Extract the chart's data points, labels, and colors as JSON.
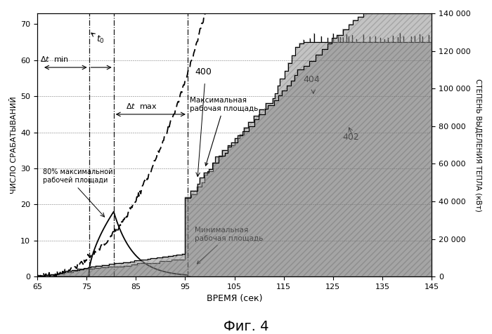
{
  "title": "Фиг. 4",
  "xlabel": "ВРЕМЯ (сек)",
  "ylabel_left": "ЧИСЛО СРАБАТЫВАНИЙ",
  "ylabel_right": "СТЕПЕНЬ ВЫДЕЛЕНИЯ ТЕПЛА (кВт)",
  "xlim": [
    65,
    145
  ],
  "ylim_left": [
    0,
    73
  ],
  "ylim_right": [
    0,
    140000
  ],
  "xticks": [
    65,
    75,
    85,
    95,
    105,
    115,
    125,
    135,
    145
  ],
  "yticks_left": [
    0,
    10,
    20,
    30,
    40,
    50,
    60,
    70
  ],
  "yticks_right": [
    0,
    20000,
    40000,
    60000,
    80000,
    100000,
    120000,
    140000
  ],
  "vlines": [
    75.5,
    80.5,
    95.5
  ],
  "background_color": "#ffffff"
}
